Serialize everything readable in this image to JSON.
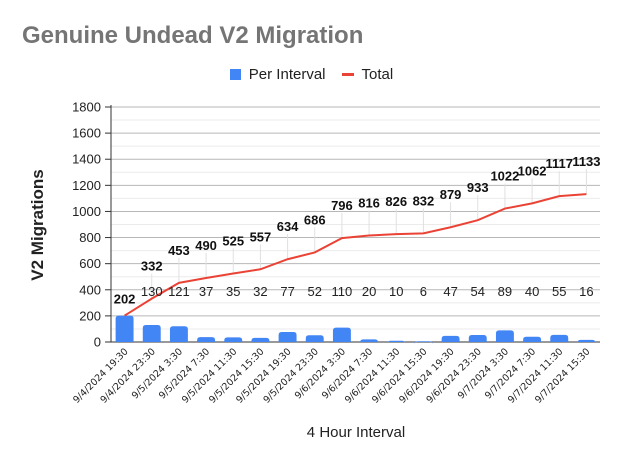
{
  "chart_data": {
    "type": "bar+line",
    "title": "Genuine Undead V2 Migration",
    "xlabel": "4 Hour Interval",
    "ylabel": "V2 Migrations",
    "ylim": [
      0,
      1800
    ],
    "yticks": [
      0,
      200,
      400,
      600,
      800,
      1000,
      1200,
      1400,
      1600,
      1800
    ],
    "grid": true,
    "legend_position": "top",
    "categories": [
      "9/4/2024 19:30",
      "9/4/2024 23:30",
      "9/5/2024 3:30",
      "9/5/2024 7:30",
      "9/5/2024 11:30",
      "9/5/2024 15:30",
      "9/5/2024 19:30",
      "9/5/2024 23:30",
      "9/6/2024 3:30",
      "9/6/2024 7:30",
      "9/6/2024 11:30",
      "9/6/2024 15:30",
      "9/6/2024 19:30",
      "9/6/2024 23:30",
      "9/7/2024 3:30",
      "9/7/2024 7:30",
      "9/7/2024 11:30",
      "9/7/2024 15:30"
    ],
    "series": [
      {
        "name": "Per Interval",
        "type": "bar",
        "color": "#4285f4",
        "values": [
          202,
          130,
          121,
          37,
          35,
          32,
          77,
          52,
          110,
          20,
          10,
          6,
          47,
          54,
          89,
          40,
          55,
          16
        ]
      },
      {
        "name": "Total",
        "type": "line",
        "color": "#ea4335",
        "values": [
          202,
          332,
          453,
          490,
          525,
          557,
          634,
          686,
          796,
          816,
          826,
          832,
          879,
          933,
          1022,
          1062,
          1117,
          1133
        ]
      }
    ]
  },
  "legend": {
    "per_interval": "Per Interval",
    "total": "Total"
  }
}
